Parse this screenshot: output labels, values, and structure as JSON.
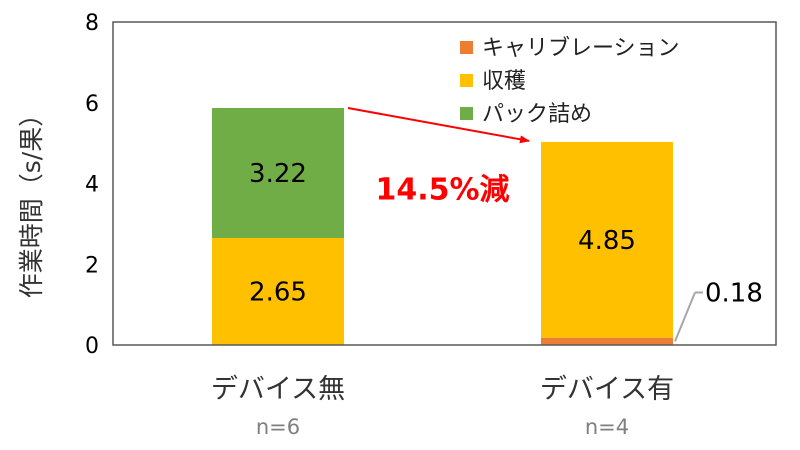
{
  "chart_data": {
    "type": "bar",
    "stacked": true,
    "ylabel": "作業時間（s/果）",
    "ylim": [
      0,
      8
    ],
    "yticks": [
      0,
      2,
      4,
      6,
      8
    ],
    "grid": false,
    "legend_position": "top-right",
    "categories": [
      "デバイス無",
      "デバイス有"
    ],
    "sample_sizes": [
      "n=6",
      "n=4"
    ],
    "series": [
      {
        "name": "キャリブレーション",
        "color": "#ed7d31",
        "values": [
          0,
          0.18
        ],
        "labels": [
          "",
          "0.18"
        ]
      },
      {
        "name": "収穫",
        "color": "#ffc000",
        "values": [
          2.65,
          4.85
        ],
        "labels": [
          "2.65",
          "4.85"
        ]
      },
      {
        "name": "パック詰め",
        "color": "#70ad47",
        "values": [
          3.22,
          0
        ],
        "labels": [
          "3.22",
          ""
        ]
      }
    ],
    "annotation": {
      "text": "14.5%減",
      "color": "#ff0000"
    }
  }
}
